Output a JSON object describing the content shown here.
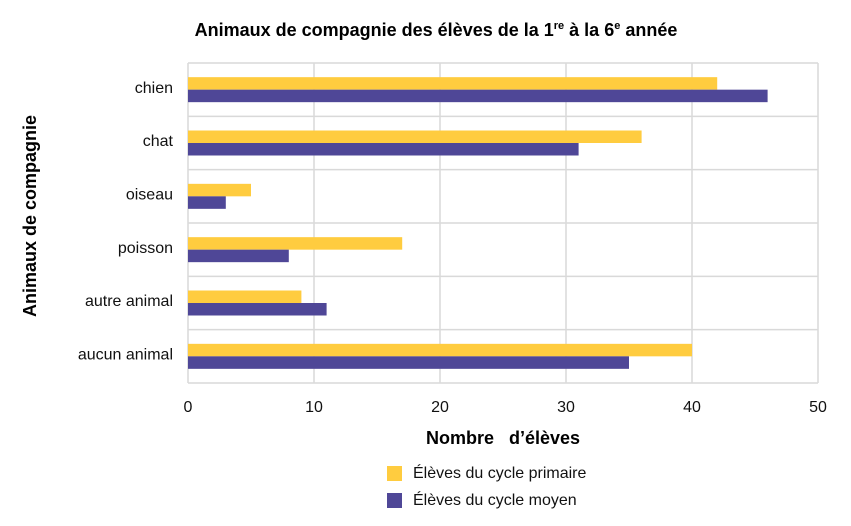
{
  "chart_data": {
    "type": "bar",
    "orientation": "horizontal",
    "title": {
      "parts": [
        {
          "text": "Animaux de compagnie des élèves de la 1",
          "sup": false
        },
        {
          "text": "re",
          "sup": true
        },
        {
          "text": " à la 6",
          "sup": false
        },
        {
          "text": "e",
          "sup": true
        },
        {
          "text": " année",
          "sup": false
        }
      ]
    },
    "xlabel": "Nombre   d’élèves",
    "ylabel": "Animaux de compagnie",
    "categories": [
      "chien",
      "chat",
      "oiseau",
      "poisson",
      "autre animal",
      "aucun animal"
    ],
    "series": [
      {
        "name": "Élèves du cycle primaire",
        "color": "#FFCC3F",
        "values": [
          42,
          36,
          5,
          17,
          9,
          40
        ]
      },
      {
        "name": "Élèves du cycle moyen",
        "color": "#4F4797",
        "values": [
          46,
          31,
          3,
          8,
          11,
          35
        ]
      }
    ],
    "xlim": [
      0,
      50
    ],
    "xticks": [
      0,
      10,
      20,
      30,
      40,
      50
    ],
    "grid": true,
    "legend_position": "bottom"
  }
}
